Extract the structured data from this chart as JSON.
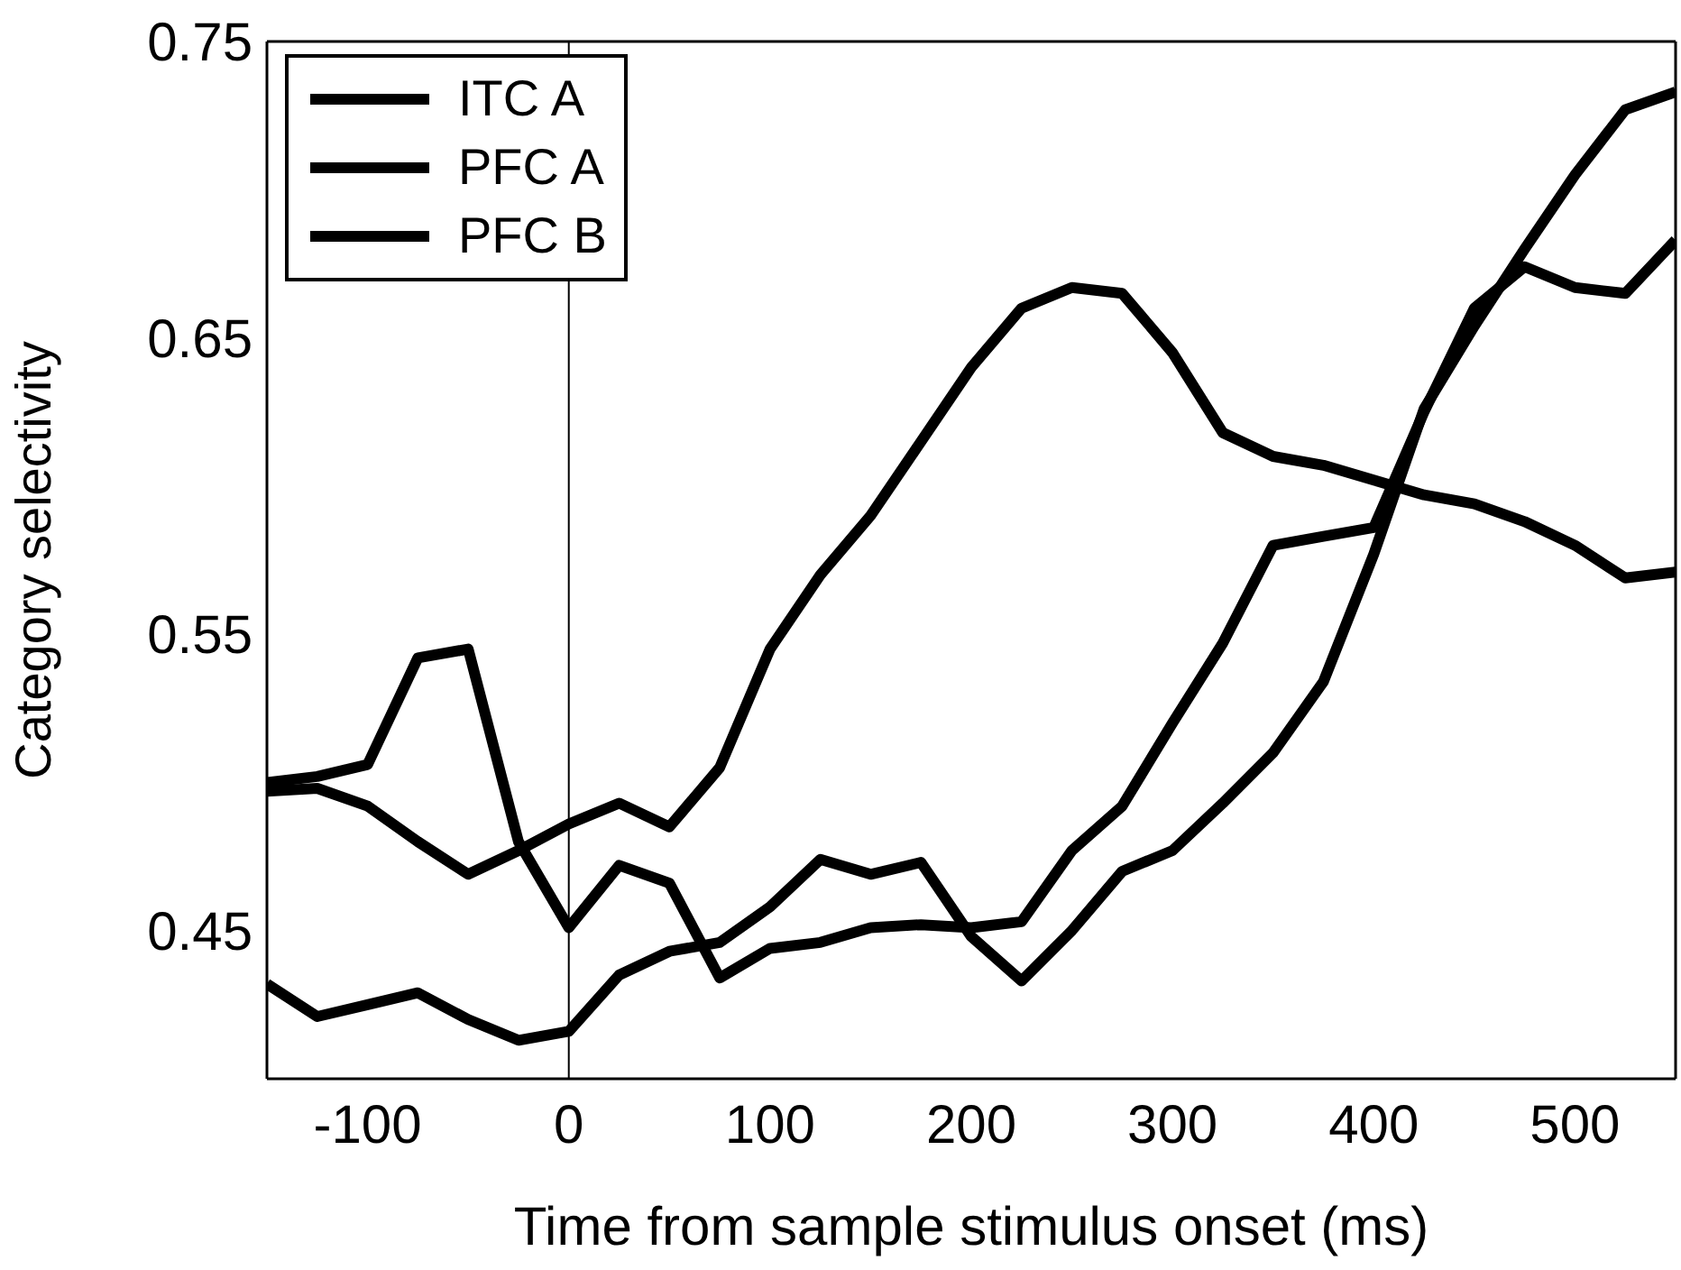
{
  "chart_data": {
    "type": "line",
    "xlabel": "Time from sample stimulus onset  (ms)",
    "ylabel": "Category selectivity",
    "x": [
      -150,
      -125,
      -100,
      -75,
      -50,
      -25,
      0,
      25,
      50,
      75,
      100,
      125,
      150,
      175,
      200,
      225,
      250,
      275,
      300,
      325,
      350,
      375,
      400,
      425,
      450,
      475,
      500,
      525,
      550
    ],
    "series": [
      {
        "name": "ITC A",
        "color": "#000000",
        "values": [
          0.497,
          0.498,
          0.492,
          0.48,
          0.469,
          0.477,
          0.486,
          0.493,
          0.485,
          0.505,
          0.545,
          0.57,
          0.59,
          0.615,
          0.64,
          0.66,
          0.667,
          0.665,
          0.645,
          0.618,
          0.61,
          0.607,
          0.602,
          0.597,
          0.594,
          0.588,
          0.58,
          0.569,
          0.571
        ]
      },
      {
        "name": "PFC A",
        "color": "#000000",
        "values": [
          0.5,
          0.502,
          0.506,
          0.542,
          0.545,
          0.48,
          0.451,
          0.472,
          0.466,
          0.434,
          0.444,
          0.446,
          0.451,
          0.452,
          0.451,
          0.453,
          0.477,
          0.492,
          0.52,
          0.547,
          0.58,
          0.583,
          0.586,
          0.625,
          0.66,
          0.674,
          0.667,
          0.665,
          0.683
        ]
      },
      {
        "name": "PFC B",
        "color": "#000000",
        "values": [
          0.432,
          0.421,
          0.425,
          0.429,
          0.42,
          0.413,
          0.416,
          0.435,
          0.443,
          0.446,
          0.458,
          0.474,
          0.469,
          0.473,
          0.448,
          0.433,
          0.45,
          0.47,
          0.477,
          0.493,
          0.51,
          0.534,
          0.577,
          0.626,
          0.654,
          0.68,
          0.705,
          0.727,
          0.733
        ]
      }
    ],
    "xlim": [
      -150,
      550
    ],
    "xticks": [
      -100,
      0,
      100,
      200,
      300,
      400,
      500
    ],
    "ylim": [
      0.4,
      0.75
    ],
    "yticks": [
      0.45,
      0.55,
      0.65,
      0.75
    ],
    "ref_lines": [
      {
        "axis": "x",
        "value": 0,
        "color": "#000000"
      }
    ],
    "grid": false,
    "legend": "top left",
    "marker": "none",
    "line_style": "solid"
  }
}
